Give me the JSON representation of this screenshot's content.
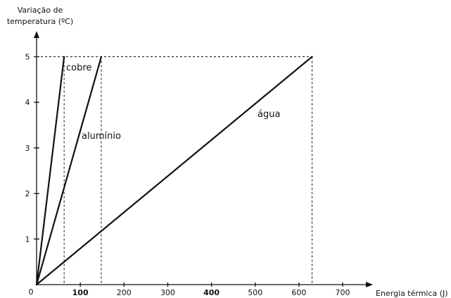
{
  "chart_data": {
    "type": "line",
    "title": "",
    "ylabel_line1": "Variação de",
    "ylabel_line2": "temperatura (ºC)",
    "xlabel": "Energia térmica (J)",
    "origin_label": "0",
    "xlim": [
      0,
      750
    ],
    "ylim": [
      0,
      5.5
    ],
    "x_ticks": [
      {
        "value": 100,
        "label": "100"
      },
      {
        "value": 200,
        "label": "200"
      },
      {
        "value": 300,
        "label": "300"
      },
      {
        "value": 400,
        "label": "400"
      },
      {
        "value": 500,
        "label": "500"
      },
      {
        "value": 600,
        "label": "600"
      },
      {
        "value": 700,
        "label": "700"
      }
    ],
    "y_ticks": [
      {
        "value": 1,
        "label": "1"
      },
      {
        "value": 2,
        "label": "2"
      },
      {
        "value": 3,
        "label": "3"
      },
      {
        "value": 4,
        "label": "4"
      },
      {
        "value": 5,
        "label": "5"
      }
    ],
    "series": [
      {
        "name": "cobre",
        "x": [
          0,
          63
        ],
        "y": [
          0,
          5
        ]
      },
      {
        "name": "alumínio",
        "x": [
          0,
          148
        ],
        "y": [
          0,
          5
        ]
      },
      {
        "name": "água",
        "x": [
          0,
          630
        ],
        "y": [
          0,
          5
        ]
      }
    ],
    "grid": false,
    "reference_lines_dashed": true,
    "line_color": "#111111"
  }
}
